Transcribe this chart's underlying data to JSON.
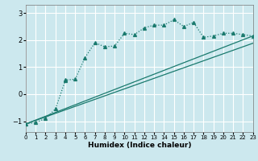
{
  "xlabel": "Humidex (Indice chaleur)",
  "bg_color": "#cce8ee",
  "grid_color": "#ffffff",
  "line_color": "#1a7a6e",
  "xlim": [
    0,
    23
  ],
  "ylim": [
    -1.4,
    3.3
  ],
  "yticks": [
    -1,
    0,
    1,
    2,
    3
  ],
  "xticks": [
    0,
    1,
    2,
    3,
    4,
    5,
    6,
    7,
    8,
    9,
    10,
    11,
    12,
    13,
    14,
    15,
    16,
    17,
    18,
    19,
    20,
    21,
    22,
    23
  ],
  "curve_x": [
    0,
    1,
    2,
    3,
    4,
    4,
    5,
    6,
    7,
    8,
    9,
    10,
    11,
    12,
    13,
    14,
    15,
    16,
    17,
    18,
    19,
    20,
    21,
    22,
    23
  ],
  "curve_y": [
    -1.1,
    -1.05,
    -0.9,
    -0.55,
    0.5,
    0.52,
    0.55,
    1.35,
    1.9,
    1.75,
    1.78,
    2.25,
    2.2,
    2.45,
    2.55,
    2.55,
    2.75,
    2.5,
    2.65,
    2.1,
    2.15,
    2.25,
    2.25,
    2.2,
    2.15
  ],
  "line1_x": [
    0,
    23
  ],
  "line1_y": [
    -1.1,
    2.15
  ],
  "line2_x": [
    0,
    23
  ],
  "line2_y": [
    -1.1,
    1.88
  ]
}
